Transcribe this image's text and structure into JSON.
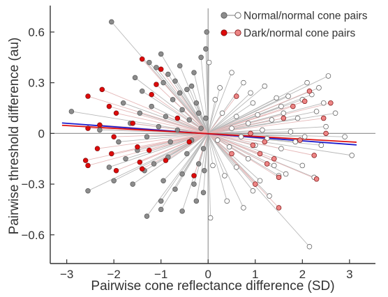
{
  "chart_data": {
    "type": "scatter",
    "title": "",
    "xlabel": "Pairwise cone reflectance difference (SD)",
    "ylabel": "Pairwise threshold difference (au)",
    "xlim": [
      -3.35,
      3.55
    ],
    "ylim": [
      -0.77,
      0.74
    ],
    "xticks": [
      -3,
      -2,
      -1,
      0,
      1,
      2,
      3
    ],
    "yticks": [
      -0.6,
      -0.3,
      0,
      0.3,
      0.6
    ],
    "xtick_labels": [
      "−3",
      "−2",
      "−1",
      "0",
      "1",
      "2",
      "3"
    ],
    "ytick_labels": [
      "−0.6",
      "−0.3",
      "0",
      "0.3",
      "0.6"
    ],
    "legend_position": "top-right",
    "zero_lines": true,
    "series": [
      {
        "name": "Normal/normal cone pairs",
        "colors": {
          "negative": "#8c8c8c",
          "positive": "#ffffff",
          "edge": "#555555",
          "line": "#b8b8b8"
        },
        "pairs": [
          [
            -2.05,
            0.66
          ],
          [
            -1.55,
            0.33
          ],
          [
            -1.4,
            0.25
          ],
          [
            -1.25,
            0.42
          ],
          [
            -1.1,
            0.39
          ],
          [
            -1.0,
            0.47
          ],
          [
            -0.95,
            0.3
          ],
          [
            -0.85,
            0.35
          ],
          [
            -0.7,
            0.31
          ],
          [
            -0.6,
            0.4
          ],
          [
            -0.45,
            0.26
          ],
          [
            -0.3,
            0.36
          ],
          [
            -0.15,
            0.45
          ],
          [
            -0.05,
            0.5
          ],
          [
            -0.03,
            0.6
          ],
          [
            -1.8,
            0.18
          ],
          [
            -1.45,
            0.12
          ],
          [
            -1.2,
            0.16
          ],
          [
            -0.9,
            0.1
          ],
          [
            -0.75,
            0.2
          ],
          [
            -0.55,
            0.14
          ],
          [
            -0.4,
            0.08
          ],
          [
            -0.25,
            0.18
          ],
          [
            -1.65,
            0.06
          ],
          [
            -1.3,
            -0.02
          ],
          [
            -1.05,
            0.04
          ],
          [
            -0.8,
            -0.05
          ],
          [
            -0.65,
            0.02
          ],
          [
            -0.35,
            -0.04
          ],
          [
            -0.15,
            0.03
          ],
          [
            -2.9,
            0.13
          ],
          [
            -2.1,
            -0.2
          ],
          [
            -2.0,
            -0.28
          ],
          [
            -2.55,
            -0.34
          ],
          [
            -1.75,
            -0.15
          ],
          [
            -1.6,
            -0.3
          ],
          [
            -1.35,
            -0.22
          ],
          [
            -1.15,
            -0.18
          ],
          [
            -1.0,
            -0.4
          ],
          [
            -0.95,
            -0.28
          ],
          [
            -0.85,
            -0.14
          ],
          [
            -0.7,
            -0.33
          ],
          [
            -0.55,
            -0.24
          ],
          [
            -0.45,
            -0.12
          ],
          [
            -0.3,
            -0.3
          ],
          [
            -0.2,
            -0.18
          ],
          [
            -0.1,
            -0.09
          ],
          [
            -1.3,
            -0.49
          ],
          [
            -1.0,
            -0.45
          ],
          [
            -0.55,
            -0.46
          ],
          [
            -0.25,
            -0.4
          ],
          [
            -0.1,
            -0.35
          ],
          [
            -1.9,
            -0.05
          ],
          [
            -2.3,
            0.02
          ],
          [
            -1.5,
            -0.1
          ],
          [
            -0.6,
            0.24
          ],
          [
            -0.35,
            0.28
          ],
          [
            -0.2,
            0.12
          ],
          [
            -0.05,
            0.09
          ],
          [
            -0.08,
            -0.22
          ],
          [
            0.02,
            0.42
          ],
          [
            0.25,
            0.27
          ],
          [
            0.5,
            0.36
          ],
          [
            0.75,
            0.3
          ],
          [
            0.95,
            0.18
          ],
          [
            1.2,
            0.28
          ],
          [
            1.45,
            0.21
          ],
          [
            1.7,
            0.22
          ],
          [
            2.1,
            0.3
          ],
          [
            2.35,
            0.27
          ],
          [
            2.55,
            0.34
          ],
          [
            2.2,
            0.23
          ],
          [
            0.3,
            0.12
          ],
          [
            0.6,
            0.1
          ],
          [
            0.85,
            0.06
          ],
          [
            1.05,
            0.11
          ],
          [
            1.35,
            0.08
          ],
          [
            1.6,
            0.12
          ],
          [
            1.9,
            0.09
          ],
          [
            2.3,
            0.13
          ],
          [
            2.7,
            0.12
          ],
          [
            0.2,
            -0.04
          ],
          [
            0.45,
            -0.08
          ],
          [
            0.7,
            -0.02
          ],
          [
            1.0,
            -0.07
          ],
          [
            1.25,
            -0.03
          ],
          [
            1.55,
            -0.09
          ],
          [
            1.85,
            -0.05
          ],
          [
            2.05,
            -0.02
          ],
          [
            2.4,
            -0.07
          ],
          [
            2.9,
            -0.02
          ],
          [
            3.05,
            -0.13
          ],
          [
            0.1,
            -0.19
          ],
          [
            0.35,
            -0.25
          ],
          [
            0.6,
            -0.2
          ],
          [
            0.85,
            -0.15
          ],
          [
            1.1,
            -0.28
          ],
          [
            1.4,
            -0.19
          ],
          [
            1.65,
            -0.24
          ],
          [
            2.0,
            -0.19
          ],
          [
            2.25,
            -0.26
          ],
          [
            0.05,
            -0.5
          ],
          [
            0.4,
            -0.4
          ],
          [
            0.75,
            -0.44
          ],
          [
            1.3,
            -0.37
          ],
          [
            1.5,
            -0.25
          ],
          [
            2.15,
            -0.67
          ],
          [
            0.95,
            -0.34
          ],
          [
            0.5,
            0.03
          ],
          [
            1.15,
            0.02
          ],
          [
            1.75,
            0.01
          ],
          [
            2.5,
            0.04
          ],
          [
            0.15,
            0.2
          ],
          [
            0.9,
            0.24
          ],
          [
            1.55,
            0.16
          ],
          [
            2.0,
            0.2
          ],
          [
            2.45,
            0.18
          ]
        ]
      },
      {
        "name": "Dark/normal cone pairs",
        "colors": {
          "negative": "#dd0a0a",
          "positive": "#ed8585",
          "edge": "#7a1010",
          "line": "#e5b8b8"
        },
        "pairs": [
          [
            -2.55,
            0.22
          ],
          [
            -2.25,
            0.26
          ],
          [
            -2.1,
            0.16
          ],
          [
            -1.95,
            0.12
          ],
          [
            -1.6,
            0.06
          ],
          [
            -1.4,
            0.44
          ],
          [
            -1.0,
            0.38
          ],
          [
            -1.1,
            0.29
          ],
          [
            -1.2,
            0.23
          ],
          [
            -2.55,
            0.03
          ],
          [
            -2.3,
            0.05
          ],
          [
            -2.0,
            -0.02
          ],
          [
            -2.6,
            -0.16
          ],
          [
            -2.55,
            -0.19
          ],
          [
            -2.35,
            -0.09
          ],
          [
            -2.05,
            -0.12
          ],
          [
            -1.95,
            -0.22
          ],
          [
            -1.45,
            -0.17
          ],
          [
            -1.5,
            -0.08
          ],
          [
            -1.25,
            -0.1
          ],
          [
            -1.4,
            -0.21
          ],
          [
            -0.65,
            0.09
          ],
          [
            -0.3,
            -0.25
          ],
          [
            -0.4,
            -0.05
          ],
          [
            -0.9,
            -0.16
          ],
          [
            0.95,
            -0.07
          ],
          [
            1.1,
            -0.12
          ],
          [
            1.25,
            -0.18
          ],
          [
            1.2,
            -0.05
          ],
          [
            1.4,
            -0.15
          ],
          [
            1.5,
            -0.26
          ],
          [
            1.5,
            -0.44
          ],
          [
            1.0,
            -0.3
          ],
          [
            0.9,
            0.0
          ],
          [
            1.8,
            0.16
          ],
          [
            2.05,
            0.19
          ],
          [
            2.15,
            0.25
          ],
          [
            2.6,
            0.18
          ],
          [
            2.5,
            0.0
          ],
          [
            2.25,
            -0.13
          ],
          [
            2.3,
            -0.27
          ],
          [
            1.6,
            0.09
          ],
          [
            1.95,
            -0.04
          ],
          [
            0.5,
            -0.12
          ],
          [
            0.6,
            0.22
          ],
          [
            2.45,
            0.09
          ]
        ]
      }
    ],
    "fit_lines": [
      {
        "color": "#1a1acc",
        "x": [
          -3.1,
          3.15
        ],
        "y": [
          0.062,
          -0.068
        ]
      },
      {
        "color": "#dd1111",
        "x": [
          -3.1,
          3.15
        ],
        "y": [
          0.048,
          -0.052
        ]
      }
    ]
  }
}
